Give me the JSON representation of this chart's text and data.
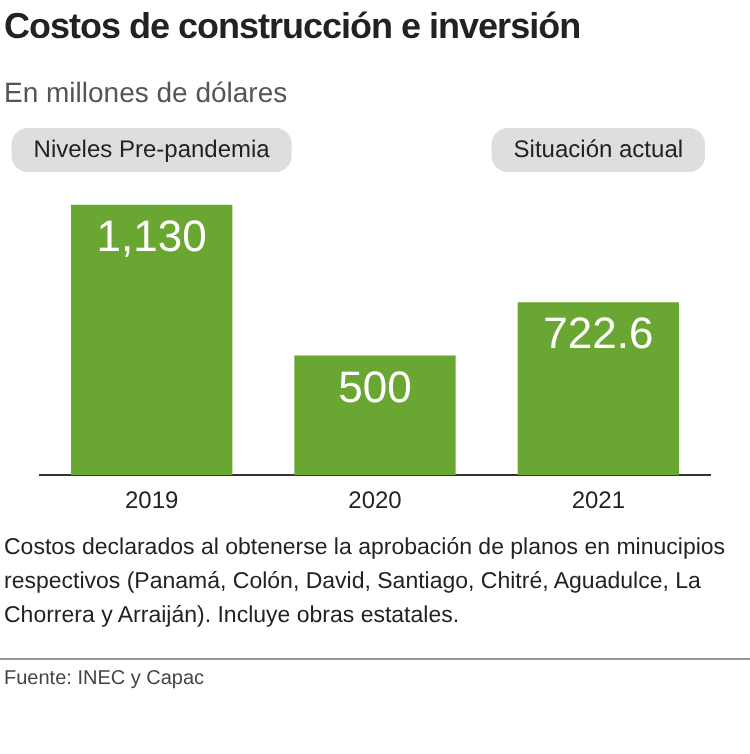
{
  "chart_data": {
    "type": "bar",
    "title": "Costos de construcción e inversión",
    "subtitle": "En millones de dólares",
    "categories": [
      "2019",
      "2020",
      "2021"
    ],
    "values": [
      1130,
      500,
      722.6
    ],
    "color": "#6aa632",
    "value_labels": [
      "1,130",
      "500",
      "722.6"
    ],
    "grid": false,
    "legend": false,
    "annotations": [
      "Niveles Pre-pandemia",
      "Situación actual",
      "Costos declarados al obtenerse la aprobación de planos en minucipios respectivos (Panamá, Colón, David, Santiago, Chitré, Aguadulce, La Chorrera y Arraiján). Incluye obras estatales.",
      "Fuente: INEC y Capac"
    ]
  }
}
